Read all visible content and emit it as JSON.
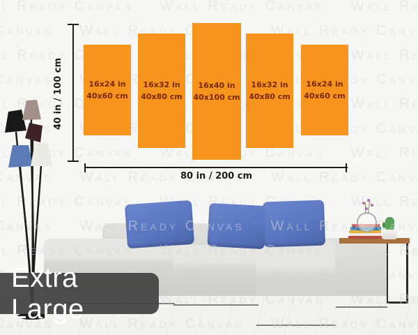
{
  "watermark": {
    "text": "Wall Ready Canvas"
  },
  "diagram": {
    "panels": [
      {
        "size_in": "16x24 in",
        "size_cm": "40x60 cm"
      },
      {
        "size_in": "16x32 in",
        "size_cm": "40x80 cm"
      },
      {
        "size_in": "16x40 in",
        "size_cm": "40x100 cm"
      },
      {
        "size_in": "16x32 in",
        "size_cm": "40x80 cm"
      },
      {
        "size_in": "16x24 in",
        "size_cm": "40x60 cm"
      }
    ],
    "total_height_label": "40 in / 100 cm",
    "total_width_label": "80 in / 200 cm"
  },
  "badge": {
    "label": "Extra Large"
  },
  "colors": {
    "panel_orange": "#F7941D",
    "panel_text_maroon": "#7A2800",
    "dimension_line": "#1D1D1D",
    "badge_background": "#424242",
    "badge_text": "#FFFFFF",
    "pillow_blue": "#5B77C2",
    "sofa_gray": "#D6D6D5",
    "wall_white": "#F6F6F4",
    "table_wood": "#A9713F",
    "cactus_green": "#57A35A"
  }
}
